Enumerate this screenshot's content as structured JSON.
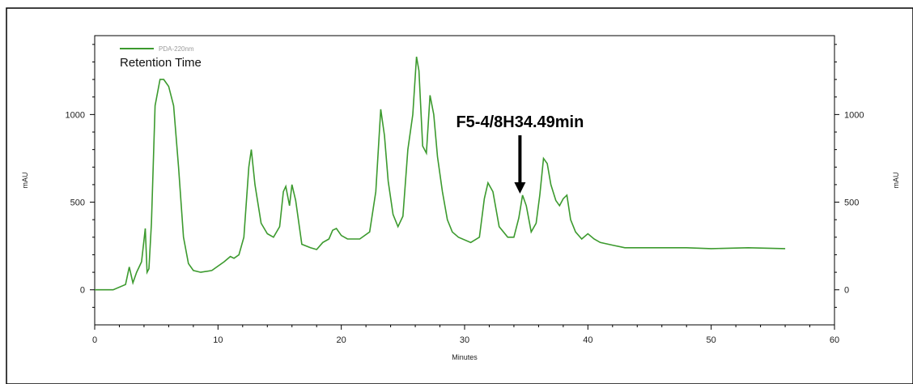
{
  "chart_data": {
    "type": "line",
    "title": "Retention Time",
    "xlabel": "Minutes",
    "ylabel_left": "mAU",
    "ylabel_right": "mAU",
    "xlim": [
      0,
      60
    ],
    "ylim": [
      -200,
      1450
    ],
    "x_ticks": [
      0,
      10,
      20,
      30,
      40,
      50,
      60
    ],
    "y_ticks": [
      0,
      500,
      1000
    ],
    "grid": false,
    "legend_position": "top-left",
    "series": [
      {
        "name": "PDA-220nm",
        "color": "#3c9a2e",
        "x": [
          0,
          1.5,
          2.5,
          2.8,
          3.1,
          3.4,
          3.8,
          4.1,
          4.25,
          4.4,
          4.6,
          4.9,
          5.3,
          5.6,
          6.0,
          6.4,
          6.8,
          7.2,
          7.6,
          8.0,
          8.6,
          9.5,
          10.5,
          11.0,
          11.3,
          11.7,
          12.1,
          12.5,
          12.7,
          13.0,
          13.5,
          14.0,
          14.5,
          15.0,
          15.3,
          15.5,
          15.8,
          16.0,
          16.3,
          16.8,
          17.5,
          18.0,
          18.5,
          19.0,
          19.3,
          19.6,
          20.0,
          20.5,
          21.5,
          22.3,
          22.8,
          23.2,
          23.5,
          23.8,
          24.2,
          24.6,
          25.0,
          25.4,
          25.8,
          26.1,
          26.3,
          26.6,
          26.9,
          27.2,
          27.5,
          27.8,
          28.2,
          28.6,
          29.0,
          29.5,
          30.5,
          31.2,
          31.6,
          31.9,
          32.3,
          32.8,
          33.5,
          34.0,
          34.4,
          34.7,
          35.0,
          35.4,
          35.8,
          36.1,
          36.4,
          36.7,
          37.0,
          37.4,
          37.7,
          38.0,
          38.3,
          38.6,
          39.0,
          39.5,
          40.0,
          40.5,
          41.0,
          42.0,
          43.0,
          45.0,
          48.0,
          50.0,
          53.0,
          56.0
        ],
        "y": [
          0,
          0,
          30,
          130,
          40,
          100,
          160,
          350,
          100,
          120,
          380,
          1050,
          1200,
          1200,
          1160,
          1050,
          700,
          300,
          150,
          110,
          100,
          110,
          160,
          190,
          180,
          200,
          300,
          700,
          800,
          600,
          380,
          320,
          300,
          360,
          560,
          590,
          480,
          600,
          510,
          260,
          240,
          230,
          270,
          290,
          340,
          350,
          310,
          290,
          290,
          330,
          560,
          1030,
          880,
          620,
          430,
          360,
          420,
          800,
          1000,
          1330,
          1250,
          820,
          780,
          1110,
          1000,
          760,
          560,
          400,
          330,
          300,
          270,
          300,
          520,
          610,
          560,
          360,
          300,
          300,
          410,
          540,
          480,
          330,
          380,
          540,
          750,
          720,
          600,
          510,
          480,
          520,
          540,
          400,
          330,
          290,
          320,
          290,
          270,
          255,
          240,
          240,
          240,
          235,
          240,
          235
        ]
      }
    ],
    "annotations": [
      {
        "text": "F5-4/8H34.49min",
        "x": 34.49,
        "y": 530
      }
    ]
  }
}
